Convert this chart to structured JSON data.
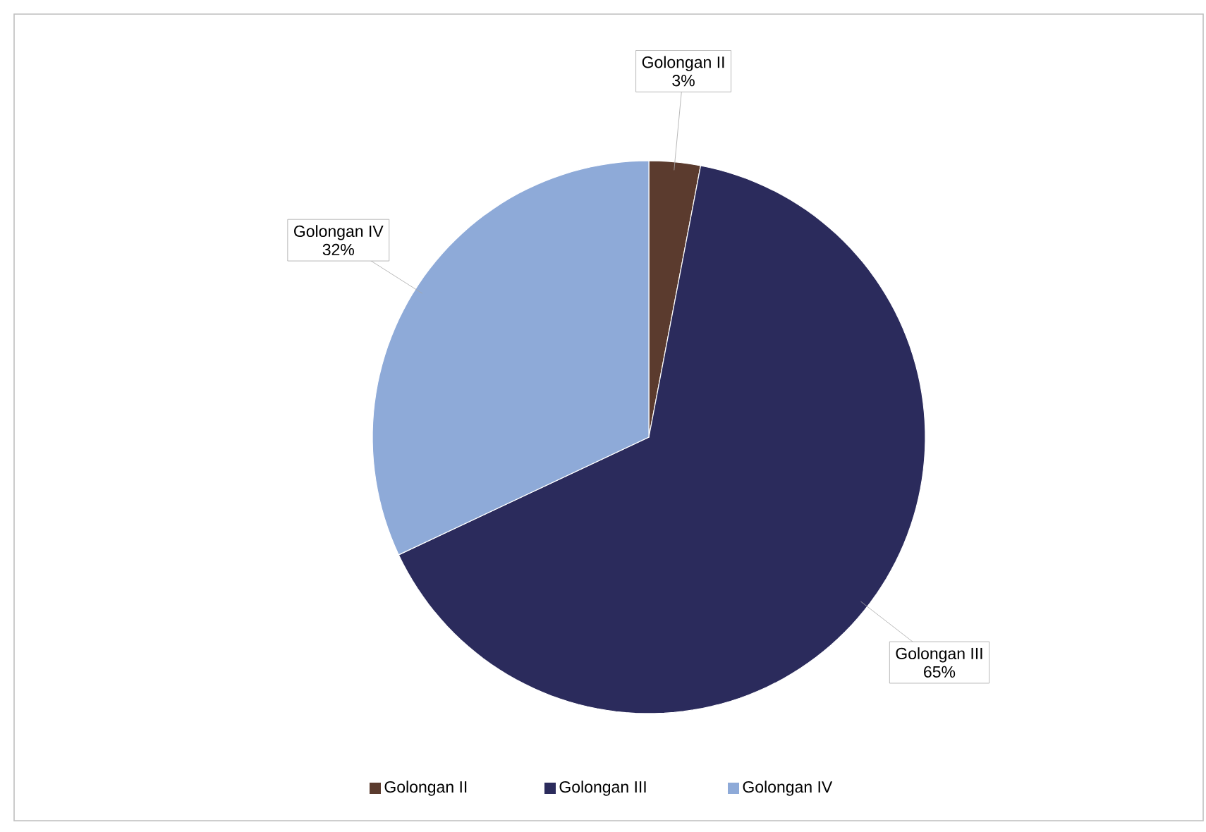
{
  "chart_data": {
    "type": "pie",
    "categories": [
      "Golongan II",
      "Golongan III",
      "Golongan IV"
    ],
    "values": [
      3,
      65,
      32
    ],
    "value_labels": [
      "3%",
      "65%",
      "32%"
    ],
    "colors": [
      "#5b3b2e",
      "#2b2b5c",
      "#8eaad8"
    ],
    "legend": "bottom"
  }
}
